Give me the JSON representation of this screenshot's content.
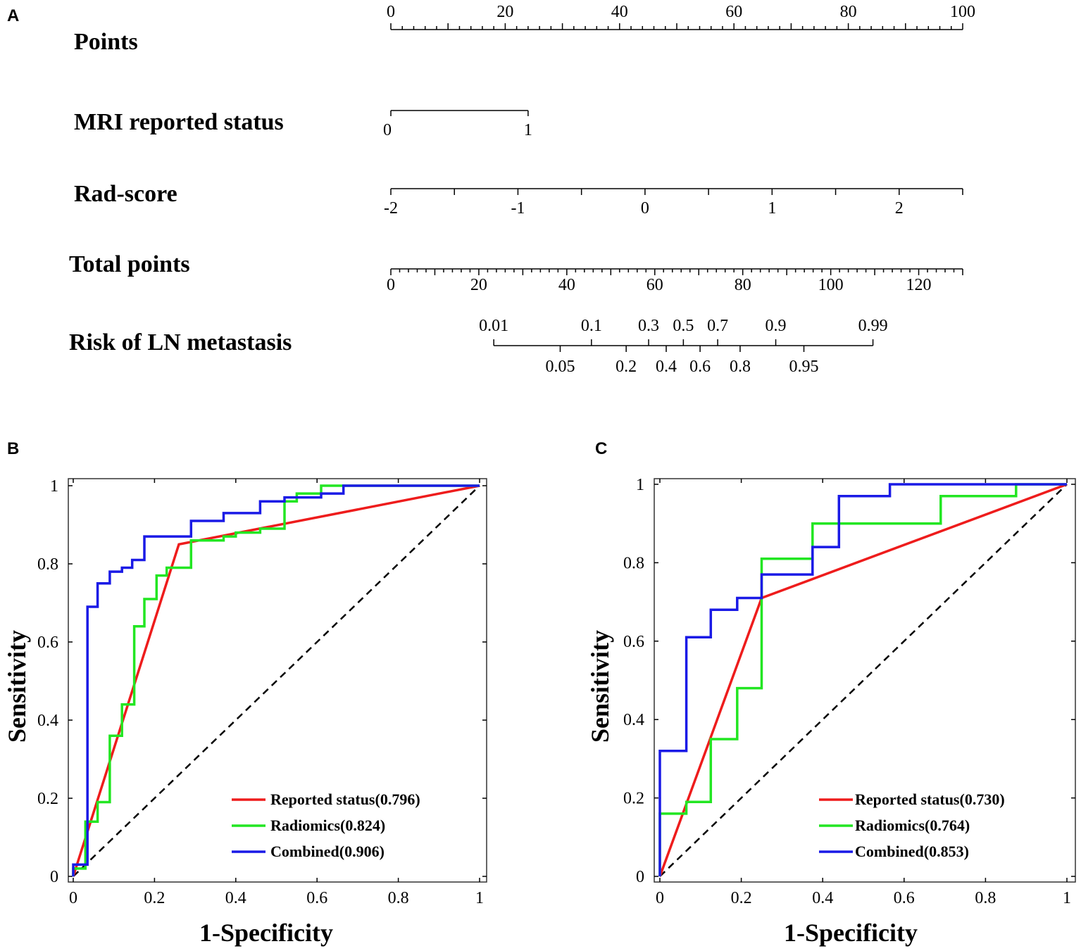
{
  "chart_data": [
    {
      "type": "nomogram",
      "panel": "A",
      "rows": [
        {
          "label": "Points",
          "min": 0,
          "max": 100,
          "labeled_ticks": [
            0,
            20,
            40,
            60,
            80,
            100
          ],
          "minor_step": 2,
          "mid_step": 10
        },
        {
          "label": "MRI reported status",
          "levels": [
            "0",
            "1"
          ],
          "points": [
            0,
            24
          ]
        },
        {
          "label": "Rad-score",
          "range": [
            -2,
            2.5
          ],
          "labeled_ticks": [
            -2,
            -1,
            0,
            1,
            2
          ],
          "tick_step": 0.5,
          "points_range": [
            0,
            100
          ]
        },
        {
          "label": "Total points",
          "min": 0,
          "max": 130,
          "labeled_ticks": [
            0,
            20,
            40,
            60,
            80,
            100,
            120
          ],
          "minor_step": 2,
          "mid_step": 10
        },
        {
          "label": "Risk of LN metastasis",
          "ticks_top": [
            {
              "label": "0.01",
              "total": 23.4
            },
            {
              "label": "0.1",
              "total": 45.6
            },
            {
              "label": "0.3",
              "total": 58.6
            },
            {
              "label": "0.5",
              "total": 66.5
            },
            {
              "label": "0.7",
              "total": 74.3
            },
            {
              "label": "0.9",
              "total": 87.5
            },
            {
              "label": "0.99",
              "total": 109.6
            }
          ],
          "ticks_bottom": [
            {
              "label": "0.05",
              "total": 38.5
            },
            {
              "label": "0.2",
              "total": 53.5
            },
            {
              "label": "0.4",
              "total": 62.6
            },
            {
              "label": "0.6",
              "total": 70.3
            },
            {
              "label": "0.8",
              "total": 79.4
            },
            {
              "label": "0.95",
              "total": 93.9
            }
          ]
        }
      ]
    },
    {
      "type": "line",
      "panel": "B",
      "xlabel": "1-Specificity",
      "ylabel": "Sensitivity",
      "xlim": [
        0,
        1
      ],
      "ylim": [
        0,
        1
      ],
      "xticks": [
        "0",
        "0.2",
        "0.4",
        "0.6",
        "0.8",
        "1"
      ],
      "yticks": [
        "0",
        "0.2",
        "0.4",
        "0.6",
        "0.8",
        "1"
      ],
      "legend": "bottom-right",
      "series": [
        {
          "name": "Reported status(0.796)",
          "color": "#ee1c1c",
          "points": [
            [
              0,
              0
            ],
            [
              0.26,
              0.85
            ],
            [
              1,
              1
            ]
          ]
        },
        {
          "name": "Radiomics(0.824)",
          "color": "#22e622",
          "points": [
            [
              0,
              0
            ],
            [
              0,
              0.02
            ],
            [
              0.03,
              0.02
            ],
            [
              0.03,
              0.14
            ],
            [
              0.06,
              0.14
            ],
            [
              0.06,
              0.19
            ],
            [
              0.09,
              0.19
            ],
            [
              0.09,
              0.36
            ],
            [
              0.12,
              0.36
            ],
            [
              0.12,
              0.44
            ],
            [
              0.15,
              0.44
            ],
            [
              0.15,
              0.64
            ],
            [
              0.175,
              0.64
            ],
            [
              0.175,
              0.71
            ],
            [
              0.205,
              0.71
            ],
            [
              0.205,
              0.77
            ],
            [
              0.23,
              0.77
            ],
            [
              0.23,
              0.79
            ],
            [
              0.29,
              0.79
            ],
            [
              0.29,
              0.86
            ],
            [
              0.37,
              0.86
            ],
            [
              0.37,
              0.87
            ],
            [
              0.4,
              0.87
            ],
            [
              0.4,
              0.88
            ],
            [
              0.46,
              0.88
            ],
            [
              0.46,
              0.89
            ],
            [
              0.52,
              0.89
            ],
            [
              0.52,
              0.96
            ],
            [
              0.55,
              0.96
            ],
            [
              0.55,
              0.98
            ],
            [
              0.61,
              0.98
            ],
            [
              0.61,
              1
            ],
            [
              1,
              1
            ]
          ]
        },
        {
          "name": "Combined(0.906)",
          "color": "#1a1ae6",
          "points": [
            [
              0,
              0
            ],
            [
              0,
              0.03
            ],
            [
              0.035,
              0.03
            ],
            [
              0.035,
              0.69
            ],
            [
              0.06,
              0.69
            ],
            [
              0.06,
              0.75
            ],
            [
              0.09,
              0.75
            ],
            [
              0.09,
              0.78
            ],
            [
              0.12,
              0.78
            ],
            [
              0.12,
              0.79
            ],
            [
              0.145,
              0.79
            ],
            [
              0.145,
              0.81
            ],
            [
              0.175,
              0.81
            ],
            [
              0.175,
              0.87
            ],
            [
              0.29,
              0.87
            ],
            [
              0.29,
              0.91
            ],
            [
              0.37,
              0.91
            ],
            [
              0.37,
              0.93
            ],
            [
              0.46,
              0.93
            ],
            [
              0.46,
              0.96
            ],
            [
              0.52,
              0.96
            ],
            [
              0.52,
              0.97
            ],
            [
              0.61,
              0.97
            ],
            [
              0.61,
              0.98
            ],
            [
              0.665,
              0.98
            ],
            [
              0.665,
              1
            ],
            [
              1,
              1
            ]
          ]
        },
        {
          "name": "reference",
          "color": "#000000",
          "dashed": true,
          "points": [
            [
              0,
              0
            ],
            [
              1,
              1
            ]
          ]
        }
      ]
    },
    {
      "type": "line",
      "panel": "C",
      "xlabel": "1-Specificity",
      "ylabel": "Sensitivity",
      "xlim": [
        0,
        1
      ],
      "ylim": [
        0,
        1
      ],
      "xticks": [
        "0",
        "0.2",
        "0.4",
        "0.6",
        "0.8",
        "1"
      ],
      "yticks": [
        "0",
        "0.2",
        "0.4",
        "0.6",
        "0.8",
        "1"
      ],
      "legend": "bottom-right",
      "series": [
        {
          "name": "Reported status(0.730)",
          "color": "#ee1c1c",
          "points": [
            [
              0,
              0
            ],
            [
              0.25,
              0.71
            ],
            [
              1,
              1
            ]
          ]
        },
        {
          "name": "Radiomics(0.764)",
          "color": "#22e622",
          "points": [
            [
              0,
              0
            ],
            [
              0,
              0.16
            ],
            [
              0.065,
              0.16
            ],
            [
              0.065,
              0.19
            ],
            [
              0.125,
              0.19
            ],
            [
              0.125,
              0.35
            ],
            [
              0.19,
              0.35
            ],
            [
              0.19,
              0.48
            ],
            [
              0.25,
              0.48
            ],
            [
              0.25,
              0.81
            ],
            [
              0.375,
              0.81
            ],
            [
              0.375,
              0.9
            ],
            [
              0.69,
              0.9
            ],
            [
              0.69,
              0.97
            ],
            [
              0.875,
              0.97
            ],
            [
              0.875,
              1
            ],
            [
              1,
              1
            ]
          ]
        },
        {
          "name": "Combined(0.853)",
          "color": "#1a1ae6",
          "points": [
            [
              0,
              0
            ],
            [
              0,
              0.32
            ],
            [
              0.065,
              0.32
            ],
            [
              0.065,
              0.61
            ],
            [
              0.125,
              0.61
            ],
            [
              0.125,
              0.68
            ],
            [
              0.19,
              0.68
            ],
            [
              0.19,
              0.71
            ],
            [
              0.25,
              0.71
            ],
            [
              0.25,
              0.77
            ],
            [
              0.375,
              0.77
            ],
            [
              0.375,
              0.84
            ],
            [
              0.44,
              0.84
            ],
            [
              0.44,
              0.97
            ],
            [
              0.565,
              0.97
            ],
            [
              0.565,
              1
            ],
            [
              1,
              1
            ]
          ]
        },
        {
          "name": "reference",
          "color": "#000000",
          "dashed": true,
          "points": [
            [
              0,
              0
            ],
            [
              1,
              1
            ]
          ]
        }
      ]
    }
  ]
}
